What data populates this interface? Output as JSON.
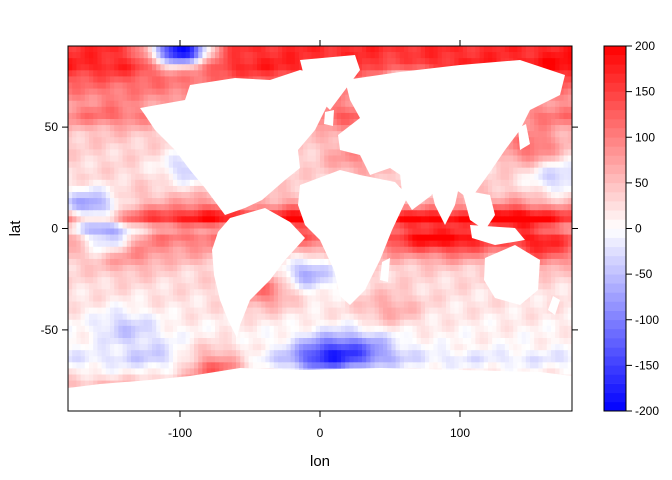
{
  "chart_data": {
    "type": "heatmap",
    "title": "",
    "xlabel": "lon",
    "ylabel": "lat",
    "xlim": [
      -180,
      180
    ],
    "ylim": [
      -90,
      90
    ],
    "x_ticks": [
      -100,
      0,
      100
    ],
    "y_ticks": [
      -50,
      0,
      50
    ],
    "x_tick_labels": [
      "-100",
      "0",
      "100"
    ],
    "y_tick_labels": [
      "-50",
      "0",
      "50"
    ],
    "colorbar": {
      "range": [
        -200,
        200
      ],
      "ticks": [
        -200,
        -150,
        -100,
        -50,
        0,
        50,
        100,
        150,
        200
      ],
      "tick_labels": [
        "-200",
        "-150",
        "-100",
        "-50",
        "0",
        "50",
        "100",
        "150",
        "200"
      ],
      "colors": {
        "low": "#0000ff",
        "mid": "#ffffff",
        "high": "#ff0000"
      }
    },
    "land_color": "#ffffff",
    "features": {
      "zonal_bands": [
        {
          "lat": 85,
          "value": 165
        },
        {
          "lat": 80,
          "value": 175
        },
        {
          "lat": 72,
          "value": 120
        },
        {
          "lat": 62,
          "value": 75
        },
        {
          "lat": 55,
          "value": 95
        },
        {
          "lat": 48,
          "value": 45
        },
        {
          "lat": 40,
          "value": 35
        },
        {
          "lat": 30,
          "value": 30
        },
        {
          "lat": 20,
          "value": 40
        },
        {
          "lat": 12,
          "value": 65
        },
        {
          "lat": 5,
          "value": 170
        },
        {
          "lat": 0,
          "value": 60
        },
        {
          "lat": -5,
          "value": 110
        },
        {
          "lat": -12,
          "value": 70
        },
        {
          "lat": -20,
          "value": 35
        },
        {
          "lat": -30,
          "value": 25
        },
        {
          "lat": -40,
          "value": 20
        },
        {
          "lat": -50,
          "value": 10
        },
        {
          "lat": -58,
          "value": 5
        },
        {
          "lat": -64,
          "value": -20
        },
        {
          "lat": -70,
          "value": 5
        },
        {
          "lat": -78,
          "value": 60
        },
        {
          "lat": -86,
          "value": 0
        }
      ],
      "hotspots": [
        {
          "lon": 140,
          "lat": 3,
          "value": 200
        },
        {
          "lon": 100,
          "lat": -5,
          "value": 190
        },
        {
          "lon": 70,
          "lat": -3,
          "value": 170
        },
        {
          "lon": 160,
          "lat": -10,
          "value": 160
        },
        {
          "lon": -30,
          "lat": 5,
          "value": 170
        },
        {
          "lon": -10,
          "lat": 3,
          "value": 180
        },
        {
          "lon": -80,
          "lat": 8,
          "value": 160
        },
        {
          "lon": -140,
          "lat": -12,
          "value": 140
        },
        {
          "lon": -40,
          "lat": -30,
          "value": 120
        },
        {
          "lon": -60,
          "lat": 38,
          "value": 110
        },
        {
          "lon": 150,
          "lat": 40,
          "value": 120
        },
        {
          "lon": 170,
          "lat": 55,
          "value": 110
        },
        {
          "lon": 50,
          "lat": -40,
          "value": 70
        },
        {
          "lon": 25,
          "lat": 35,
          "value": 90
        },
        {
          "lon": -150,
          "lat": 58,
          "value": 110
        },
        {
          "lon": 20,
          "lat": 55,
          "value": 130
        },
        {
          "lon": -75,
          "lat": -68,
          "value": 120
        },
        {
          "lon": 175,
          "lat": 80,
          "value": 200
        }
      ],
      "coldspots": [
        {
          "lon": 0,
          "lat": -63,
          "value": -130
        },
        {
          "lon": 20,
          "lat": -60,
          "value": -90
        },
        {
          "lon": -10,
          "lat": -22,
          "value": -70
        },
        {
          "lon": -150,
          "lat": -5,
          "value": -60
        },
        {
          "lon": -140,
          "lat": -48,
          "value": -40
        },
        {
          "lon": -90,
          "lat": 30,
          "value": -50
        },
        {
          "lon": 170,
          "lat": 25,
          "value": -40
        },
        {
          "lon": -165,
          "lat": 10,
          "value": -60
        },
        {
          "lon": 40,
          "lat": -60,
          "value": -50
        },
        {
          "lon": -120,
          "lat": -60,
          "value": -30
        },
        {
          "lon": 60,
          "lat": 70,
          "value": -60
        },
        {
          "lon": -100,
          "lat": 88,
          "value": -200
        }
      ]
    }
  }
}
